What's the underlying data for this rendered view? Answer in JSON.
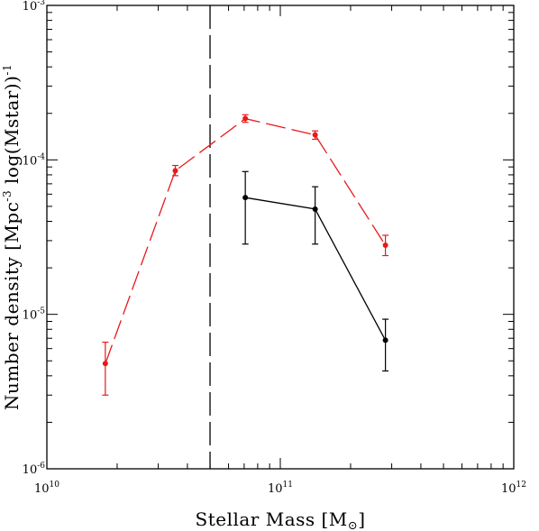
{
  "chart_data": {
    "type": "line",
    "xlabel": "Stellar Mass [M",
    "xlabel_unit_symbol": "⊙",
    "xlabel_close": "]",
    "ylabel": "Number density [Mpc",
    "ylabel_exp": "-3",
    "ylabel_mid": " log(Mstar)",
    "ylabel_close": ")",
    "ylabel_exp2": "-1",
    "x_scale": "log",
    "y_scale": "log",
    "xlim": [
      10000000000.0,
      1000000000000.0
    ],
    "ylim": [
      1e-06,
      0.001
    ],
    "x_ticks": [
      {
        "value": 10000000000.0,
        "base": "10",
        "exp": "10"
      },
      {
        "value": 100000000000.0,
        "base": "10",
        "exp": "11"
      },
      {
        "value": 1000000000000.0,
        "base": "10",
        "exp": "12"
      }
    ],
    "y_ticks": [
      {
        "value": 1e-06,
        "base": "10",
        "exp": "-6"
      },
      {
        "value": 1e-05,
        "base": "10",
        "exp": "-5"
      },
      {
        "value": 0.0001,
        "base": "10",
        "exp": "-4"
      },
      {
        "value": 0.001,
        "base": "10",
        "exp": "-3"
      }
    ],
    "vertical_line": {
      "x": 50000000000.0,
      "style": "long-dash",
      "color": "#000000"
    },
    "series": [
      {
        "color": "#e8191a",
        "line_style": "dashed",
        "points": [
          {
            "x": 17800000000.0,
            "y": 4.8e-06,
            "ylo": 3e-06,
            "yhi": 6.6e-06
          },
          {
            "x": 35500000000.0,
            "y": 8.5e-05,
            "ylo": 7.9e-05,
            "yhi": 9.2e-05
          },
          {
            "x": 70800000000.0,
            "y": 0.000185,
            "ylo": 0.000175,
            "yhi": 0.000196
          },
          {
            "x": 141000000000.0,
            "y": 0.000145,
            "ylo": 0.000136,
            "yhi": 0.000154
          },
          {
            "x": 282000000000.0,
            "y": 2.8e-05,
            "ylo": 2.4e-05,
            "yhi": 3.25e-05
          }
        ]
      },
      {
        "color": "#000000",
        "line_style": "solid",
        "points": [
          {
            "x": 70800000000.0,
            "y": 5.7e-05,
            "ylo": 2.85e-05,
            "yhi": 8.4e-05
          },
          {
            "x": 141000000000.0,
            "y": 4.8e-05,
            "ylo": 2.85e-05,
            "yhi": 6.7e-05
          },
          {
            "x": 282000000000.0,
            "y": 6.8e-06,
            "ylo": 4.3e-06,
            "yhi": 9.3e-06
          }
        ]
      }
    ],
    "grid": false,
    "legend": "none"
  }
}
